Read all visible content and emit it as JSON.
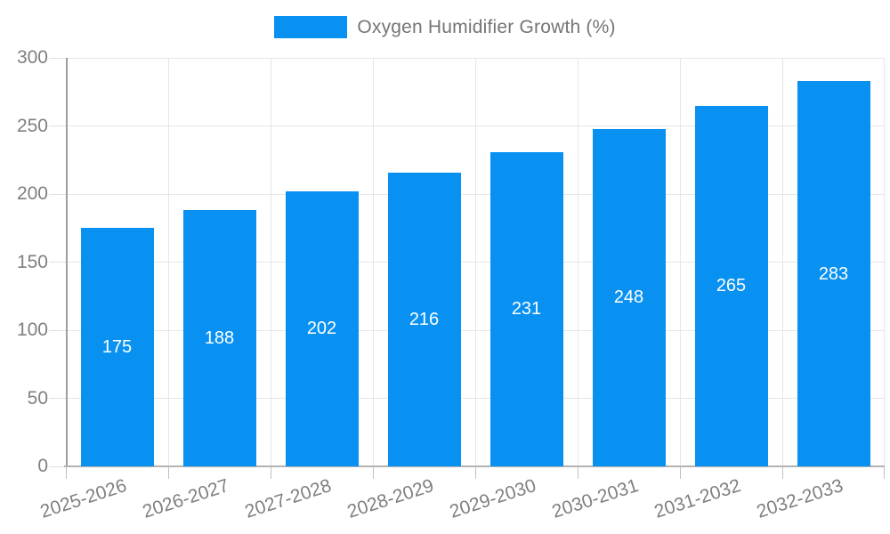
{
  "chart_data": {
    "type": "bar",
    "title": "Oxygen Humidifier Growth (%)",
    "categories": [
      "2025-2026",
      "2026-2027",
      "2027-2028",
      "2028-2029",
      "2029-2030",
      "2030-2031",
      "2031-2032",
      "2032-2033"
    ],
    "values": [
      175,
      188,
      202,
      216,
      231,
      248,
      265,
      283
    ],
    "y_ticks": [
      0,
      50,
      100,
      150,
      200,
      250,
      300
    ],
    "ylim": [
      0,
      300
    ],
    "xlabel": "",
    "ylabel": "",
    "grid": true,
    "legend_position": "top",
    "legend_entries": [
      "Oxygen Humidifier Growth (%)"
    ],
    "value_labels": [
      "175",
      "188",
      "202",
      "216",
      "231",
      "248",
      "265",
      "283"
    ]
  },
  "colors": {
    "bar": "#0991f2",
    "value_label": "#ffffff",
    "legend_text": "#757575",
    "axis_text": "#808080",
    "gridline": "#e6e6e6",
    "y_axis_line": "#9e9e9e",
    "x_axis_line": "#b3b3b3",
    "tick": "#c0c0c0",
    "background": "#ffffff"
  }
}
